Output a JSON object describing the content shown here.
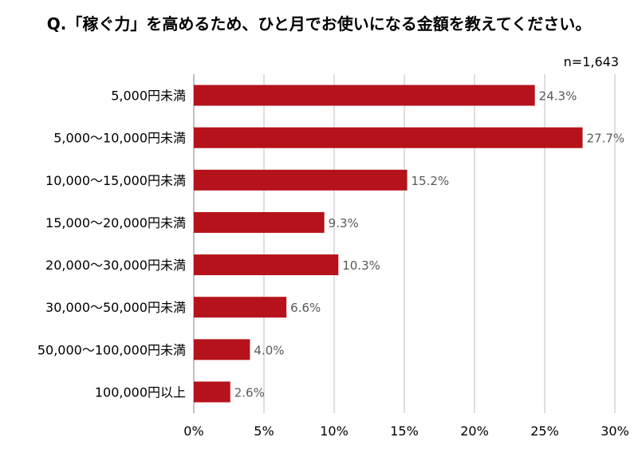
{
  "chart_data": {
    "type": "bar",
    "orientation": "horizontal",
    "title": "Q.「稼ぐ力」を高めるため、ひと月でお使いになる金額を教えてください。",
    "note": "n=1,643",
    "categories": [
      "5,000円未満",
      "5,000～10,000円未満",
      "10,000～15,000円未満",
      "15,000～20,000円未満",
      "20,000～30,000円未満",
      "30,000～50,000円未満",
      "50,000～100,000円未満",
      "100,000円以上"
    ],
    "values": [
      24.3,
      27.7,
      15.2,
      9.3,
      10.3,
      6.6,
      4.0,
      2.6
    ],
    "data_labels": [
      "24.3%",
      "27.7%",
      "15.2%",
      "9.3%",
      "10.3%",
      "6.6%",
      "4.0%",
      "2.6%"
    ],
    "x_ticks": [
      0,
      5,
      10,
      15,
      20,
      25,
      30
    ],
    "x_tick_labels": [
      "0%",
      "5%",
      "10%",
      "15%",
      "20%",
      "25%",
      "30%"
    ],
    "xlim": [
      0,
      30
    ],
    "grid": true,
    "colors": {
      "bar": "#b5121b",
      "grid": "#bfbfbf",
      "axis": "#808080",
      "data_label": "#595959",
      "text": "#000000"
    }
  }
}
